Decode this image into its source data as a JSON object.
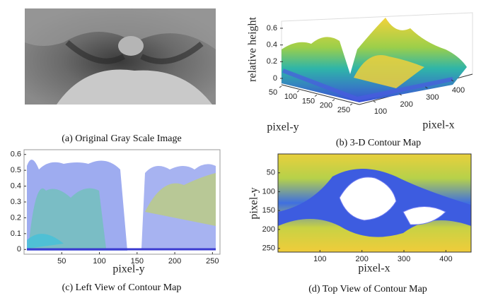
{
  "panels": [
    {
      "caption": "(a) Original Gray Scale Image"
    },
    {
      "caption": "(b) 3-D Contour Map",
      "zlabel": "relative height",
      "ylabel": "pixel-y",
      "xlabel": "pixel-x",
      "zticks": [
        0,
        0.2,
        0.4,
        0.6
      ],
      "yticks": [
        50,
        100,
        150,
        200,
        250
      ],
      "xticks": [
        100,
        200,
        300,
        400
      ]
    },
    {
      "caption": "(c) Left View of Contour Map",
      "xlabel": "pixel-y",
      "xlim": [
        0,
        260
      ],
      "xticks": [
        50,
        100,
        150,
        200,
        250
      ],
      "ylim": [
        -0.03,
        0.63
      ],
      "yticks": [
        0,
        0.1,
        0.2,
        0.3,
        0.4,
        0.5,
        0.6
      ]
    },
    {
      "caption": "(d) Top View of Contour Map",
      "xlabel": "pixel-x",
      "ylabel": "pixel-y",
      "xlim": [
        0,
        460
      ],
      "xticks": [
        100,
        200,
        300,
        400
      ],
      "ylim": [
        0,
        260
      ],
      "yticks": [
        50,
        100,
        150,
        200,
        250
      ]
    }
  ]
}
